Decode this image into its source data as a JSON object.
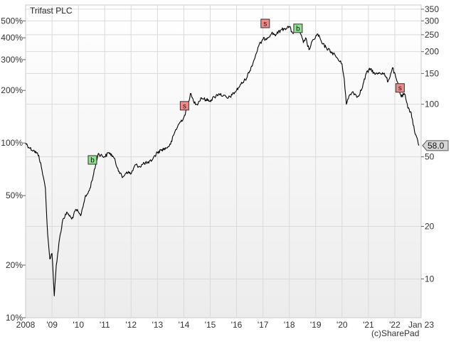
{
  "chart_data": {
    "type": "line",
    "title": "Trifast PLC",
    "credit": "(c)SharePad",
    "last_value_label": "58.0",
    "x_axis": {
      "range": [
        "2008-01-01",
        "2023-01-01"
      ],
      "tick_labels": [
        {
          "date": "2008-01-01",
          "label": "2008"
        },
        {
          "date": "2009-01-01",
          "label": "'09"
        },
        {
          "date": "2010-01-01",
          "label": "'10"
        },
        {
          "date": "2011-01-01",
          "label": "'11"
        },
        {
          "date": "2012-01-01",
          "label": "'12"
        },
        {
          "date": "2013-01-01",
          "label": "'13"
        },
        {
          "date": "2014-01-01",
          "label": "'14"
        },
        {
          "date": "2015-01-01",
          "label": "'15"
        },
        {
          "date": "2016-01-01",
          "label": "'16"
        },
        {
          "date": "2017-01-01",
          "label": "'17"
        },
        {
          "date": "2018-01-01",
          "label": "'18"
        },
        {
          "date": "2019-01-01",
          "label": "'19"
        },
        {
          "date": "2020-01-01",
          "label": "'20"
        },
        {
          "date": "2021-01-01",
          "label": "'21"
        },
        {
          "date": "2022-01-01",
          "label": "'22"
        },
        {
          "date": "2023-01-01",
          "label": "Jan 23"
        }
      ]
    },
    "y_right": {
      "scale": "log",
      "range": [
        6,
        370
      ],
      "ticks": [
        350,
        300,
        250,
        200,
        150,
        100,
        50,
        20,
        10
      ],
      "tick_labels": [
        "350",
        "300",
        "250",
        "200",
        "150",
        "100",
        "50",
        "20",
        "10"
      ]
    },
    "y_left": {
      "scale": "log",
      "unit": "percent of starting price",
      "ticks": [
        500,
        400,
        300,
        200,
        100,
        50,
        20,
        10
      ],
      "tick_labels": [
        "500%",
        "400%",
        "300%",
        "200%",
        "100%",
        "50%",
        "20%",
        "10%"
      ]
    },
    "grid": true,
    "series": [
      {
        "color": "#000000",
        "points": [
          [
            "2008-01-01",
            60
          ],
          [
            "2008-03-01",
            56
          ],
          [
            "2008-05-01",
            54
          ],
          [
            "2008-07-01",
            51
          ],
          [
            "2008-08-15",
            42
          ],
          [
            "2008-10-01",
            33
          ],
          [
            "2008-11-01",
            18
          ],
          [
            "2008-12-01",
            13
          ],
          [
            "2009-01-01",
            14
          ],
          [
            "2009-02-01",
            8
          ],
          [
            "2009-03-01",
            12
          ],
          [
            "2009-04-15",
            17
          ],
          [
            "2009-06-01",
            22
          ],
          [
            "2009-08-01",
            24
          ],
          [
            "2009-10-01",
            22
          ],
          [
            "2009-12-01",
            25
          ],
          [
            "2010-02-01",
            23
          ],
          [
            "2010-04-01",
            29
          ],
          [
            "2010-06-01",
            32
          ],
          [
            "2010-08-01",
            40
          ],
          [
            "2010-10-01",
            52
          ],
          [
            "2011-01-01",
            50
          ],
          [
            "2011-03-01",
            53
          ],
          [
            "2011-05-01",
            50
          ],
          [
            "2011-07-01",
            43
          ],
          [
            "2011-09-01",
            38
          ],
          [
            "2011-11-01",
            41
          ],
          [
            "2012-01-01",
            40
          ],
          [
            "2012-03-01",
            45
          ],
          [
            "2012-05-01",
            44
          ],
          [
            "2012-07-01",
            46
          ],
          [
            "2012-09-01",
            46
          ],
          [
            "2012-11-01",
            49
          ],
          [
            "2013-01-01",
            53
          ],
          [
            "2013-03-01",
            55
          ],
          [
            "2013-05-01",
            56
          ],
          [
            "2013-07-01",
            59
          ],
          [
            "2013-09-01",
            70
          ],
          [
            "2013-11-01",
            78
          ],
          [
            "2014-01-01",
            84
          ],
          [
            "2014-02-15",
            95
          ],
          [
            "2014-04-01",
            115
          ],
          [
            "2014-05-15",
            104
          ],
          [
            "2014-07-01",
            100
          ],
          [
            "2014-09-01",
            109
          ],
          [
            "2014-11-01",
            106
          ],
          [
            "2015-01-01",
            105
          ],
          [
            "2015-03-01",
            110
          ],
          [
            "2015-05-01",
            115
          ],
          [
            "2015-07-01",
            112
          ],
          [
            "2015-09-01",
            108
          ],
          [
            "2015-11-01",
            113
          ],
          [
            "2016-01-01",
            120
          ],
          [
            "2016-03-01",
            130
          ],
          [
            "2016-05-01",
            138
          ],
          [
            "2016-07-01",
            155
          ],
          [
            "2016-09-01",
            180
          ],
          [
            "2016-11-01",
            215
          ],
          [
            "2017-01-01",
            235
          ],
          [
            "2017-03-01",
            240
          ],
          [
            "2017-05-01",
            255
          ],
          [
            "2017-07-01",
            250
          ],
          [
            "2017-09-01",
            265
          ],
          [
            "2017-11-01",
            272
          ],
          [
            "2018-01-01",
            278
          ],
          [
            "2018-02-15",
            255
          ],
          [
            "2018-04-01",
            270
          ],
          [
            "2018-06-01",
            255
          ],
          [
            "2018-07-15",
            225
          ],
          [
            "2018-08-15",
            240
          ],
          [
            "2018-10-01",
            205
          ],
          [
            "2018-12-01",
            235
          ],
          [
            "2019-02-01",
            252
          ],
          [
            "2019-04-01",
            222
          ],
          [
            "2019-06-01",
            210
          ],
          [
            "2019-08-01",
            200
          ],
          [
            "2019-10-01",
            190
          ],
          [
            "2019-12-01",
            175
          ],
          [
            "2020-01-01",
            170
          ],
          [
            "2020-02-01",
            140
          ],
          [
            "2020-03-01",
            100
          ],
          [
            "2020-04-15",
            113
          ],
          [
            "2020-06-01",
            118
          ],
          [
            "2020-08-01",
            110
          ],
          [
            "2020-10-01",
            122
          ],
          [
            "2020-12-01",
            150
          ],
          [
            "2021-02-01",
            160
          ],
          [
            "2021-04-01",
            148
          ],
          [
            "2021-06-01",
            152
          ],
          [
            "2021-08-01",
            150
          ],
          [
            "2021-10-01",
            135
          ],
          [
            "2021-12-01",
            162
          ],
          [
            "2022-02-01",
            135
          ],
          [
            "2022-04-01",
            110
          ],
          [
            "2022-05-15",
            115
          ],
          [
            "2022-07-01",
            95
          ],
          [
            "2022-08-15",
            90
          ],
          [
            "2022-10-01",
            70
          ],
          [
            "2022-11-15",
            62
          ],
          [
            "2022-12-01",
            58
          ]
        ]
      }
    ],
    "signals": [
      {
        "date": "2010-07-15",
        "value": 48,
        "label": "b",
        "color": "#8fe08f"
      },
      {
        "date": "2014-01-10",
        "value": 98,
        "label": "s",
        "color": "#f08a8a"
      },
      {
        "date": "2017-02-01",
        "value": 290,
        "label": "s",
        "color": "#f08a8a"
      },
      {
        "date": "2018-05-01",
        "value": 272,
        "label": "b",
        "color": "#8fe08f"
      },
      {
        "date": "2022-03-15",
        "value": 124,
        "label": "s",
        "color": "#f08a8a"
      }
    ],
    "colors": {
      "background_top": "#ffffff",
      "background_bottom": "#ededed",
      "grid": "#dadada",
      "line": "#000000",
      "buy": "#8fe08f",
      "sell": "#f08a8a"
    }
  }
}
